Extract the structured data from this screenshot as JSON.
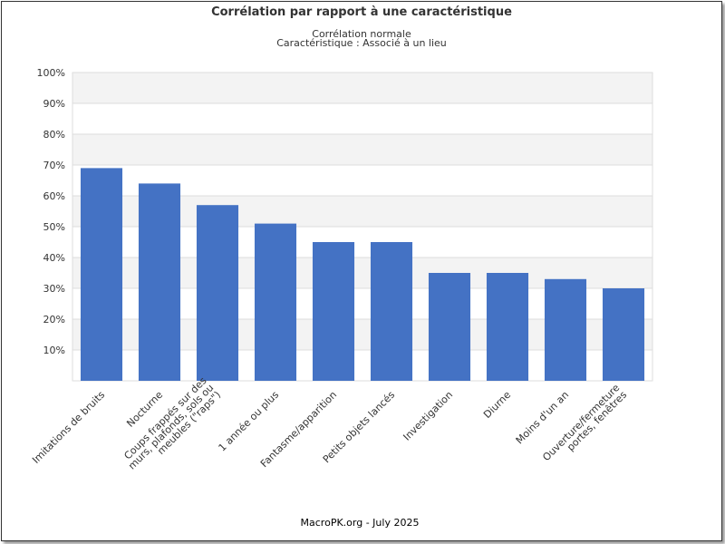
{
  "chart_data": {
    "type": "bar",
    "title": "Corrélation par rapport à une caractéristique",
    "subtitle_lines": [
      "Corrélation normale",
      "Caractéristique : Associé à un lieu"
    ],
    "categories": [
      "Imitations de bruits",
      "Nocturne",
      "Coups frappés sur des murs, plafonds, sols ou meubles (\"raps\")",
      "1 année ou plus",
      "Fantasme/apparition",
      "Petits objets lancés",
      "Investigation",
      "Diurne",
      "Moins d'un an",
      "Ouverture/fermeture portes, fenêtres"
    ],
    "category_label_lines": [
      [
        "Imitations de bruits"
      ],
      [
        "Nocturne"
      ],
      [
        "Coups frappés sur des",
        "murs, plafonds, sols ou",
        "meubles (\"raps\")"
      ],
      [
        "1 année ou plus"
      ],
      [
        "Fantasme/apparition"
      ],
      [
        "Petits objets lancés"
      ],
      [
        "Investigation"
      ],
      [
        "Diurne"
      ],
      [
        "Moins d'un an"
      ],
      [
        "Ouverture/fermeture",
        "portes, fenêtres"
      ]
    ],
    "values": [
      69,
      64,
      57,
      51,
      45,
      45,
      35,
      35,
      33,
      30
    ],
    "ylim": [
      0,
      100
    ],
    "yticks": [
      10,
      20,
      30,
      40,
      50,
      60,
      70,
      80,
      90,
      100
    ],
    "ytick_labels": [
      "10%",
      "20%",
      "30%",
      "40%",
      "50%",
      "60%",
      "70%",
      "80%",
      "90%",
      "100%"
    ],
    "bar_color": "#4472c4",
    "band_color": "#f3f3f3",
    "grid_color": "#dddddd",
    "xlabel": "",
    "ylabel": "",
    "grid": true,
    "legend": "none"
  },
  "footer": "MacroPK.org - July 2025"
}
